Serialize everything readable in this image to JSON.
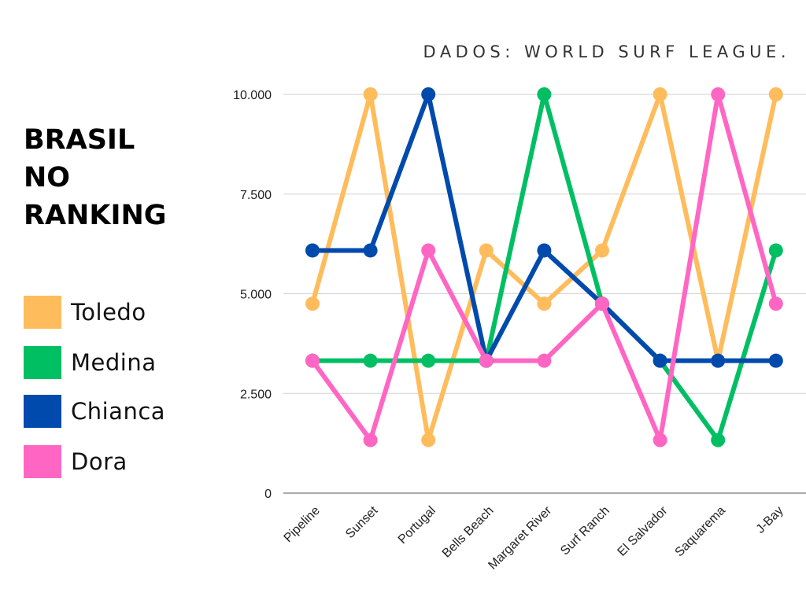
{
  "source_label": "DADOS: WORLD SURF LEAGUE.",
  "title_lines": [
    "BRASIL",
    "NO",
    "RANKING"
  ],
  "legend": [
    {
      "label": "Toledo",
      "color": "#FFBC5C"
    },
    {
      "label": "Medina",
      "color": "#00BF63"
    },
    {
      "label": "Chianca",
      "color": "#004AAD"
    },
    {
      "label": "Dora",
      "color": "#FF66C4"
    }
  ],
  "chart_data": {
    "type": "line",
    "title": "BRASIL NO RANKING",
    "xlabel": "",
    "ylabel": "",
    "ylim": [
      0,
      10000
    ],
    "yticks": [
      0,
      2500,
      5000,
      7500,
      10000
    ],
    "ytick_labels": [
      "0",
      "2.500",
      "5.000",
      "7.500",
      "10.000"
    ],
    "grid": true,
    "categories": [
      "Pipeline",
      "Sunset",
      "Portugal",
      "Bells Beach",
      "Margaret River",
      "Surf Ranch",
      "El Salvador",
      "Saquarema",
      "J-Bay"
    ],
    "series": [
      {
        "name": "Toledo",
        "color": "#FFBC5C",
        "values": [
          4750,
          10000,
          1330,
          6085,
          4750,
          6085,
          10000,
          3320,
          10000
        ]
      },
      {
        "name": "Medina",
        "color": "#00BF63",
        "values": [
          3320,
          3320,
          3320,
          3320,
          10000,
          4750,
          3320,
          1330,
          6085
        ]
      },
      {
        "name": "Chianca",
        "color": "#004AAD",
        "values": [
          6085,
          6085,
          10000,
          3320,
          6085,
          4750,
          3320,
          3320,
          3320
        ]
      },
      {
        "name": "Dora",
        "color": "#FF66C4",
        "values": [
          3320,
          1330,
          6085,
          3320,
          3320,
          4750,
          1330,
          10000,
          4750
        ]
      }
    ]
  }
}
